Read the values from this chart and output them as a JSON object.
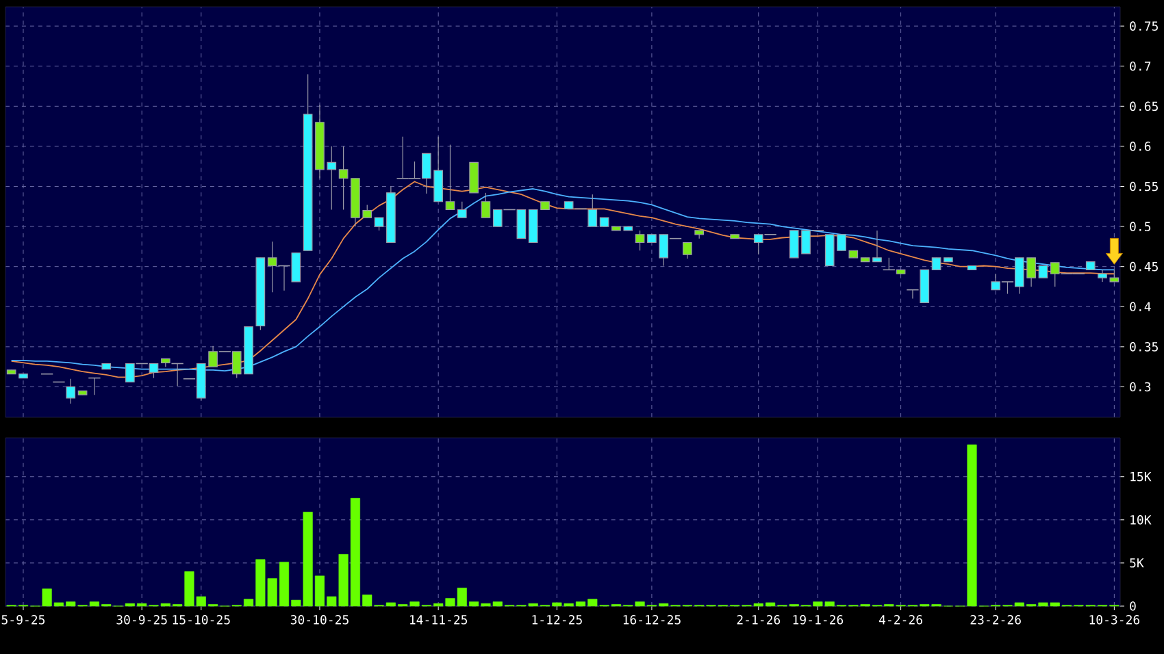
{
  "chart_data": [
    {
      "type": "candlestick",
      "categories": [
        null,
        null,
        null,
        null,
        null,
        null,
        null,
        null,
        null,
        null,
        null,
        null,
        null,
        null,
        null,
        null,
        null,
        null,
        null,
        null,
        null,
        null,
        null,
        null,
        null,
        null,
        null,
        null,
        null,
        null,
        null,
        null,
        null,
        null,
        null,
        null,
        null,
        null,
        null,
        null,
        null,
        null,
        null,
        null,
        null,
        null,
        null,
        null,
        null,
        null,
        null,
        null,
        null,
        null,
        null,
        null,
        null,
        null,
        null,
        null,
        null,
        null,
        null,
        null,
        null,
        null,
        null,
        null,
        null,
        null,
        null,
        null,
        null,
        null,
        null,
        null,
        null,
        null,
        null,
        null,
        null,
        null,
        null,
        null,
        null,
        null,
        null,
        null,
        null,
        null,
        null,
        null,
        null,
        null
      ],
      "ylim": [
        0.262,
        0.774
      ],
      "yticks": [
        0.3,
        0.35,
        0.4,
        0.45,
        0.5,
        0.55,
        0.6,
        0.65,
        0.7,
        0.75
      ],
      "grid": true,
      "tick_labels": "y",
      "series": [
        {
          "type": "line",
          "color": "#e8894a",
          "values": [
            0.332,
            0.33,
            0.328,
            0.327,
            0.325,
            0.322,
            0.319,
            0.317,
            0.315,
            0.312,
            0.312,
            0.314,
            0.318,
            0.319,
            0.321,
            0.322,
            0.324,
            0.326,
            0.328,
            0.33,
            0.333,
            0.345,
            0.358,
            0.371,
            0.384,
            0.41,
            0.44,
            0.46,
            0.485,
            0.503,
            0.515,
            0.526,
            0.534,
            0.546,
            0.556,
            0.55,
            0.548,
            0.546,
            0.544,
            0.546,
            0.549,
            0.546,
            0.543,
            0.54,
            0.534,
            0.528,
            0.523,
            0.522,
            0.522,
            0.522,
            0.522,
            0.519,
            0.516,
            0.513,
            0.511,
            0.507,
            0.503,
            0.5,
            0.497,
            0.493,
            0.489,
            0.486,
            0.485,
            0.484,
            0.484,
            0.486,
            0.487,
            0.488,
            0.488,
            0.489,
            0.488,
            0.486,
            0.481,
            0.476,
            0.47,
            0.466,
            0.462,
            0.458,
            0.455,
            0.453,
            0.45,
            0.45,
            0.451,
            0.45,
            0.448,
            0.447,
            0.446,
            0.445,
            0.443,
            0.442,
            0.442,
            0.442,
            0.441,
            0.441
          ]
        },
        {
          "type": "line",
          "color": "#4db2ff",
          "values": [
            0.333,
            0.333,
            0.332,
            0.332,
            0.331,
            0.33,
            0.328,
            0.327,
            0.325,
            0.324,
            0.323,
            0.322,
            0.322,
            0.322,
            0.322,
            0.322,
            0.321,
            0.321,
            0.32,
            0.322,
            0.325,
            0.331,
            0.337,
            0.344,
            0.35,
            0.363,
            0.375,
            0.388,
            0.4,
            0.412,
            0.422,
            0.436,
            0.448,
            0.46,
            0.469,
            0.481,
            0.496,
            0.51,
            0.519,
            0.529,
            0.538,
            0.54,
            0.543,
            0.545,
            0.547,
            0.544,
            0.54,
            0.537,
            0.536,
            0.535,
            0.534,
            0.533,
            0.532,
            0.53,
            0.527,
            0.522,
            0.517,
            0.512,
            0.51,
            0.509,
            0.508,
            0.507,
            0.505,
            0.504,
            0.503,
            0.5,
            0.498,
            0.496,
            0.494,
            0.492,
            0.49,
            0.489,
            0.487,
            0.484,
            0.482,
            0.479,
            0.476,
            0.475,
            0.474,
            0.472,
            0.471,
            0.47,
            0.467,
            0.464,
            0.46,
            0.457,
            0.455,
            0.453,
            0.451,
            0.449,
            0.448,
            0.447,
            0.446,
            0.446
          ]
        },
        {
          "type": "candlestick",
          "ohlc": [
            [
              0.321,
              0.321,
              0.316,
              0.316
            ],
            [
              0.311,
              0.316,
              0.311,
              0.316
            ],
            null,
            [
              0.316,
              0.316,
              0.316,
              0.316
            ],
            [
              0.306,
              0.306,
              0.306,
              0.306
            ],
            [
              0.286,
              0.31,
              0.279,
              0.3
            ],
            [
              0.295,
              0.295,
              0.29,
              0.29
            ],
            [
              0.311,
              0.311,
              0.29,
              0.311
            ],
            [
              0.322,
              0.329,
              0.322,
              0.329
            ],
            null,
            [
              0.306,
              0.329,
              0.306,
              0.329
            ],
            [
              0.329,
              0.329,
              0.329,
              0.329
            ],
            [
              0.318,
              0.329,
              0.311,
              0.329
            ],
            [
              0.335,
              0.335,
              0.325,
              0.33
            ],
            [
              0.329,
              0.329,
              0.301,
              0.329
            ],
            [
              0.31,
              0.31,
              0.31,
              0.31
            ],
            [
              0.286,
              0.329,
              0.283,
              0.329
            ],
            [
              0.344,
              0.351,
              0.325,
              0.325
            ],
            [
              0.344,
              0.344,
              0.344,
              0.344
            ],
            [
              0.344,
              0.344,
              0.311,
              0.316
            ],
            [
              0.316,
              0.375,
              0.316,
              0.375
            ],
            [
              0.376,
              0.461,
              0.371,
              0.461
            ],
            [
              0.461,
              0.481,
              0.418,
              0.451
            ],
            [
              0.451,
              0.451,
              0.42,
              0.451
            ],
            [
              0.431,
              0.467,
              0.431,
              0.467
            ],
            [
              0.47,
              0.69,
              0.47,
              0.64
            ],
            [
              0.63,
              0.652,
              0.56,
              0.571
            ],
            [
              0.571,
              0.6,
              0.521,
              0.58
            ],
            [
              0.571,
              0.6,
              0.521,
              0.56
            ],
            [
              0.56,
              0.56,
              0.5,
              0.511
            ],
            [
              0.52,
              0.527,
              0.511,
              0.511
            ],
            [
              0.5,
              0.511,
              0.495,
              0.511
            ],
            [
              0.48,
              0.55,
              0.48,
              0.542
            ],
            [
              0.56,
              0.612,
              0.56,
              0.56
            ],
            [
              0.56,
              0.581,
              0.56,
              0.56
            ],
            [
              0.56,
              0.591,
              0.541,
              0.591
            ],
            [
              0.531,
              0.612,
              0.531,
              0.57
            ],
            [
              0.531,
              0.602,
              0.521,
              0.521
            ],
            [
              0.511,
              0.531,
              0.511,
              0.521
            ],
            [
              0.58,
              0.58,
              0.542,
              0.542
            ],
            [
              0.531,
              0.542,
              0.511,
              0.511
            ],
            [
              0.5,
              0.521,
              0.5,
              0.521
            ],
            [
              0.521,
              0.521,
              0.521,
              0.521
            ],
            [
              0.485,
              0.521,
              0.485,
              0.521
            ],
            [
              0.48,
              0.521,
              0.48,
              0.521
            ],
            [
              0.531,
              0.531,
              0.521,
              0.521
            ],
            null,
            [
              0.522,
              0.531,
              0.522,
              0.531
            ],
            [
              0.522,
              0.522,
              0.522,
              0.522
            ],
            [
              0.5,
              0.54,
              0.5,
              0.521
            ],
            [
              0.5,
              0.511,
              0.5,
              0.511
            ],
            [
              0.5,
              0.5,
              0.495,
              0.495
            ],
            [
              0.495,
              0.5,
              0.495,
              0.5
            ],
            [
              0.49,
              0.495,
              0.47,
              0.48
            ],
            [
              0.48,
              0.49,
              0.48,
              0.49
            ],
            [
              0.461,
              0.49,
              0.451,
              0.49
            ],
            [
              0.485,
              0.485,
              0.485,
              0.485
            ],
            [
              0.48,
              0.48,
              0.46,
              0.465
            ],
            [
              0.495,
              0.495,
              0.485,
              0.49
            ],
            null,
            null,
            [
              0.49,
              0.49,
              0.485,
              0.485
            ],
            null,
            [
              0.48,
              0.49,
              0.465,
              0.49
            ],
            [
              0.49,
              0.49,
              0.49,
              0.49
            ],
            null,
            [
              0.461,
              0.495,
              0.461,
              0.495
            ],
            [
              0.466,
              0.495,
              0.466,
              0.495
            ],
            [
              0.495,
              0.495,
              0.495,
              0.495
            ],
            [
              0.451,
              0.49,
              0.451,
              0.49
            ],
            [
              0.47,
              0.49,
              0.47,
              0.49
            ],
            [
              0.47,
              0.47,
              0.461,
              0.461
            ],
            [
              0.461,
              0.461,
              0.456,
              0.456
            ],
            [
              0.456,
              0.495,
              0.456,
              0.461
            ],
            [
              0.446,
              0.461,
              0.446,
              0.446
            ],
            [
              0.446,
              0.446,
              0.441,
              0.441
            ],
            [
              0.421,
              0.421,
              0.41,
              0.421
            ],
            [
              0.405,
              0.446,
              0.405,
              0.446
            ],
            [
              0.446,
              0.461,
              0.446,
              0.461
            ],
            [
              0.456,
              0.461,
              0.456,
              0.461
            ],
            null,
            [
              0.446,
              0.451,
              0.446,
              0.451
            ],
            null,
            [
              0.421,
              0.441,
              0.421,
              0.431
            ],
            [
              0.431,
              0.431,
              0.416,
              0.431
            ],
            [
              0.425,
              0.461,
              0.416,
              0.461
            ],
            [
              0.461,
              0.461,
              0.425,
              0.436
            ],
            [
              0.436,
              0.451,
              0.436,
              0.451
            ],
            [
              0.455,
              0.455,
              0.425,
              0.441
            ],
            [
              0.441,
              0.441,
              0.441,
              0.441
            ],
            [
              0.441,
              0.441,
              0.441,
              0.441
            ],
            [
              0.446,
              0.456,
              0.446,
              0.456
            ],
            [
              0.436,
              0.446,
              0.431,
              0.441
            ],
            [
              0.436,
              0.446,
              0.431,
              0.431
            ]
          ],
          "colors": [
            "#7ae81a",
            "#2ef2ff",
            null,
            "#9a9aa8",
            "#9a9aa8",
            "#2ef2ff",
            "#7ae81a",
            "#9a9aa8",
            "#2ef2ff",
            null,
            "#2ef2ff",
            "#9a9aa8",
            "#2ef2ff",
            "#7ae81a",
            "#9a9aa8",
            "#9a9aa8",
            "#2ef2ff",
            "#7ae81a",
            "#9a9aa8",
            "#7ae81a",
            "#2ef2ff",
            "#2ef2ff",
            "#7ae81a",
            "#9a9aa8",
            "#2ef2ff",
            "#2ef2ff",
            "#7ae81a",
            "#2ef2ff",
            "#7ae81a",
            "#7ae81a",
            "#7ae81a",
            "#2ef2ff",
            "#2ef2ff",
            "#9a9aa8",
            "#9a9aa8",
            "#2ef2ff",
            "#2ef2ff",
            "#7ae81a",
            "#2ef2ff",
            "#7ae81a",
            "#7ae81a",
            "#2ef2ff",
            "#9a9aa8",
            "#2ef2ff",
            "#2ef2ff",
            "#7ae81a",
            null,
            "#2ef2ff",
            "#9a9aa8",
            "#2ef2ff",
            "#2ef2ff",
            "#7ae81a",
            "#2ef2ff",
            "#7ae81a",
            "#2ef2ff",
            "#2ef2ff",
            "#9a9aa8",
            "#7ae81a",
            "#7ae81a",
            null,
            null,
            "#7ae81a",
            null,
            "#2ef2ff",
            "#9a9aa8",
            null,
            "#2ef2ff",
            "#2ef2ff",
            "#9a9aa8",
            "#2ef2ff",
            "#2ef2ff",
            "#7ae81a",
            "#7ae81a",
            "#2ef2ff",
            "#9a9aa8",
            "#7ae81a",
            "#9a9aa8",
            "#2ef2ff",
            "#2ef2ff",
            "#2ef2ff",
            null,
            "#2ef2ff",
            null,
            "#2ef2ff",
            "#9a9aa8",
            "#2ef2ff",
            "#7ae81a",
            "#2ef2ff",
            "#7ae81a",
            "#9a9aa8",
            "#9a9aa8",
            "#2ef2ff",
            "#2ef2ff",
            "#7ae81a"
          ]
        }
      ]
    },
    {
      "type": "bar",
      "categories": [
        null,
        "5-9-25",
        null,
        null,
        null,
        null,
        null,
        null,
        null,
        null,
        null,
        "30-9-25",
        null,
        null,
        null,
        null,
        "15-10-25",
        null,
        null,
        null,
        null,
        null,
        null,
        null,
        null,
        null,
        "30-10-25",
        null,
        null,
        null,
        null,
        null,
        null,
        null,
        null,
        null,
        "14-11-25",
        null,
        null,
        null,
        null,
        null,
        null,
        null,
        null,
        null,
        "1-12-25",
        null,
        null,
        null,
        null,
        null,
        null,
        null,
        "16-12-25",
        null,
        null,
        null,
        null,
        null,
        null,
        null,
        null,
        "2-1-26",
        null,
        null,
        null,
        null,
        "19-1-26",
        null,
        null,
        null,
        null,
        null,
        null,
        "4-2-26",
        null,
        null,
        null,
        null,
        null,
        null,
        null,
        "23-2-26",
        null,
        null,
        null,
        null,
        null,
        null,
        null,
        null,
        null,
        "10-3-26"
      ],
      "ylim": [
        0,
        19500
      ],
      "yticks": [
        {
          "value": 0,
          "label": "0"
        },
        {
          "value": 5000,
          "label": "5K"
        },
        {
          "value": 10000,
          "label": "10K"
        },
        {
          "value": 15000,
          "label": "15K"
        }
      ],
      "grid": true,
      "color": "#66ff00",
      "values": [
        100,
        100,
        0,
        2000,
        400,
        500,
        100,
        500,
        200,
        0,
        300,
        300,
        100,
        300,
        200,
        4000,
        1100,
        200,
        0,
        100,
        800,
        5400,
        3200,
        5100,
        700,
        10900,
        3500,
        1100,
        6000,
        12500,
        1300,
        100,
        400,
        200,
        500,
        100,
        300,
        900,
        2100,
        500,
        300,
        500,
        100,
        100,
        300,
        100,
        400,
        300,
        500,
        800,
        100,
        200,
        100,
        500,
        100,
        300,
        100,
        100,
        100,
        100,
        100,
        100,
        100,
        300,
        400,
        100,
        200,
        100,
        500,
        500,
        100,
        100,
        200,
        100,
        200,
        100,
        100,
        200,
        200,
        0,
        0,
        18700,
        0,
        100,
        100,
        400,
        200,
        400,
        400,
        100,
        100,
        100,
        100,
        100
      ]
    }
  ]
}
